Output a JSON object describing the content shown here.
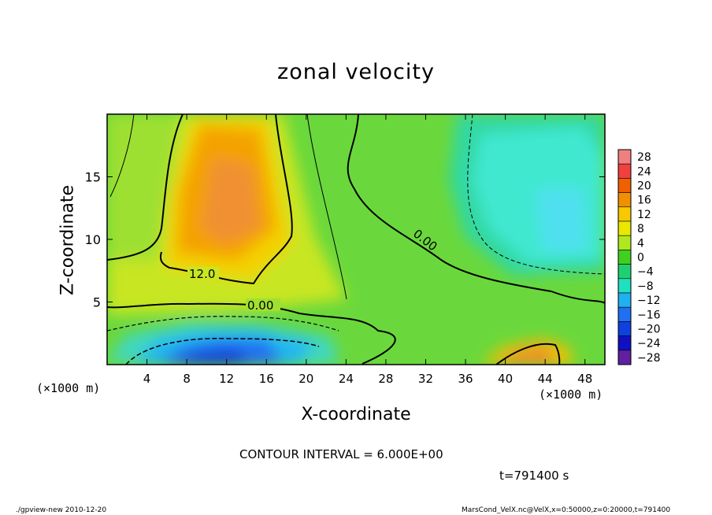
{
  "chart_data": {
    "type": "heatmap",
    "title": "zonal velocity",
    "xlabel": "X-coordinate",
    "ylabel": "Z-coordinate",
    "x_unit": "(×1000 m)",
    "xlim": [
      0,
      50
    ],
    "ylim": [
      0,
      20
    ],
    "x_ticks": [
      4,
      8,
      12,
      16,
      20,
      24,
      28,
      32,
      36,
      40,
      44,
      48
    ],
    "y_ticks": [
      5,
      10,
      15
    ],
    "colorbar": {
      "levels": [
        28,
        24,
        20,
        16,
        12,
        8,
        4,
        0,
        -4,
        -8,
        -12,
        -16,
        -20,
        -24,
        -28
      ],
      "colors": [
        "#f08080",
        "#f04040",
        "#f06000",
        "#f09000",
        "#f8c800",
        "#e8e800",
        "#b0e820",
        "#40d020",
        "#20d070",
        "#20e0c0",
        "#20b0f0",
        "#2070f0",
        "#1040e0",
        "#1010c0",
        "#6020a0"
      ]
    },
    "contour_labels": [
      "12.0",
      "0.00",
      "0.00"
    ],
    "contour_interval": "CONTOUR INTERVAL = 6.000E+00",
    "time": "t=791400 s"
  },
  "footer": {
    "left": "./gpview-new  2010-12-20",
    "right": "MarsCond_VelX.nc@VelX,x=0:50000,z=0:20000,t=791400"
  }
}
